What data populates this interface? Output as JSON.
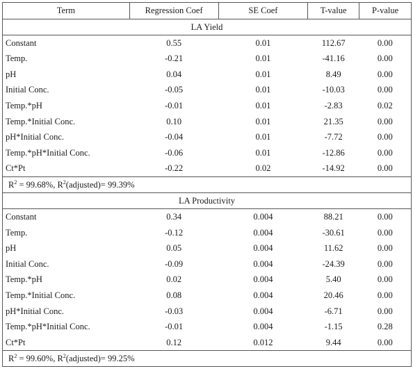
{
  "header": [
    "Term",
    "Regression Coef",
    "SE Coef",
    "T-value",
    "P-value"
  ],
  "sections": [
    {
      "title": "LA Yield",
      "rows": [
        [
          "Constant",
          "0.55",
          "0.01",
          "112.67",
          "0.00"
        ],
        [
          "Temp.",
          "-0.21",
          "0.01",
          "-41.16",
          "0.00"
        ],
        [
          "pH",
          "0.04",
          "0.01",
          "8.49",
          "0.00"
        ],
        [
          "Initial Conc.",
          "-0.05",
          "0.01",
          "-10.03",
          "0.00"
        ],
        [
          "Temp.*pH",
          "-0.01",
          "0.01",
          "-2.83",
          "0.02"
        ],
        [
          "Temp.*Initial Conc.",
          "0.10",
          "0.01",
          "21.35",
          "0.00"
        ],
        [
          "pH*Initial Conc.",
          "-0.04",
          "0.01",
          "-7.72",
          "0.00"
        ],
        [
          "Temp.*pH*Initial Conc.",
          "-0.06",
          "0.01",
          "-12.86",
          "0.00"
        ],
        [
          "Ct*Pt",
          "-0.22",
          "0.02",
          "-14.92",
          "0.00"
        ]
      ],
      "r2": "99.68%",
      "r2_adj": "99.39%"
    },
    {
      "title": "LA Productivity",
      "rows": [
        [
          "Constant",
          "0.34",
          "0.004",
          "88.21",
          "0.00"
        ],
        [
          "Temp.",
          "-0.12",
          "0.004",
          "-30.61",
          "0.00"
        ],
        [
          "pH",
          "0.05",
          "0.004",
          "11.62",
          "0.00"
        ],
        [
          "Initial Conc.",
          "-0.09",
          "0.004",
          "-24.39",
          "0.00"
        ],
        [
          "Temp.*pH",
          "0.02",
          "0.004",
          "5.40",
          "0.00"
        ],
        [
          "Temp.*Initial Conc.",
          "0.08",
          "0.004",
          "20.46",
          "0.00"
        ],
        [
          "pH*Initial Conc.",
          "-0.03",
          "0.004",
          "-6.71",
          "0.00"
        ],
        [
          "Temp.*pH*Initial Conc.",
          "-0.01",
          "0.004",
          "-1.15",
          "0.28"
        ],
        [
          "Ct*Pt",
          "0.12",
          "0.012",
          "9.44",
          "0.00"
        ]
      ],
      "r2": "99.60%",
      "r2_adj": "99.25%"
    }
  ]
}
